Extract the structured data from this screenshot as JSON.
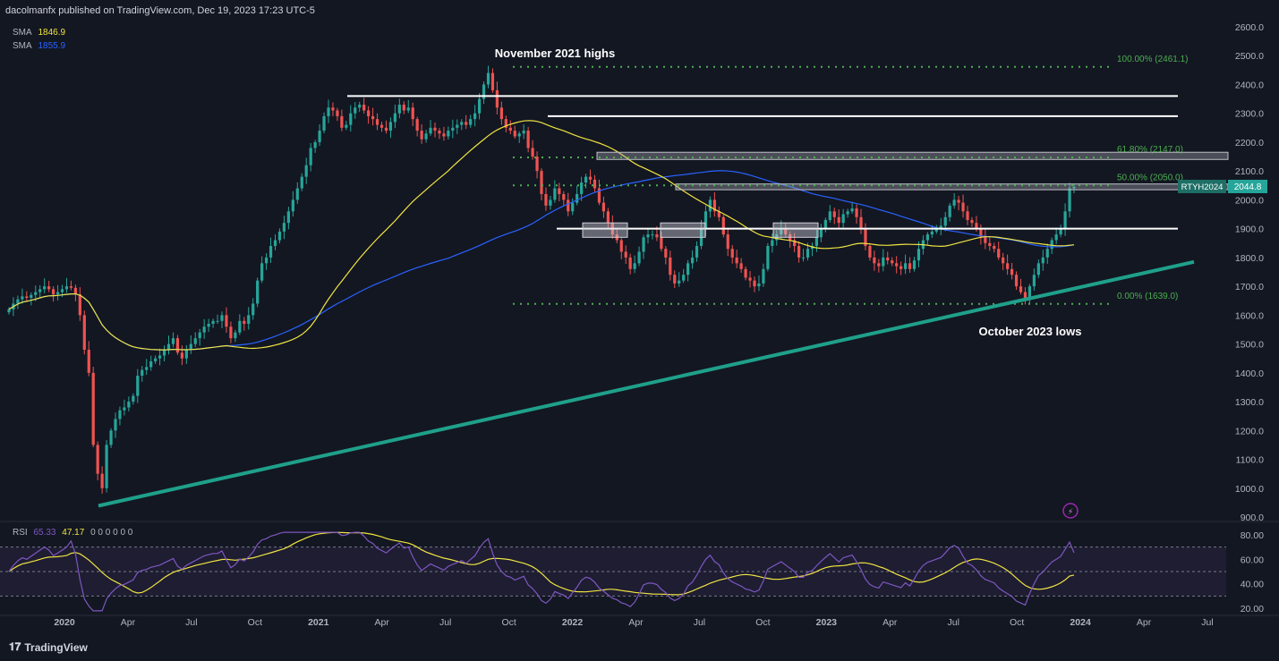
{
  "header": {
    "published": "dacolmanfx published on TradingView.com, Dec 19, 2023 17:23 UTC-5"
  },
  "footer": {
    "brand": "TradingView"
  },
  "indicators": {
    "sma1_label": "SMA",
    "sma1_value": "1846.9",
    "sma1_color": "#f0e442",
    "sma2_label": "SMA",
    "sma2_value": "1855.9",
    "sma2_color": "#2962ff",
    "rsi_label": "RSI",
    "rsi_value": "65.33",
    "rsi_ma_value": "47.17",
    "rsi_extra": "0 0 0 0 0 0"
  },
  "colors": {
    "background": "#131722",
    "up": "#26a69a",
    "down": "#ef5350",
    "trendline": "#1fa08a",
    "fib": "#4caf50",
    "rsi_line": "#7e57c2",
    "rsi_ma": "#f0e442"
  },
  "chart_data": {
    "type": "candlestick",
    "symbol": "RTYH2024",
    "last_price": "2044.8",
    "price_axis": {
      "min": 900,
      "max": 2600,
      "ticks": [
        "2600.0",
        "2500.0",
        "2400.0",
        "2300.0",
        "2200.0",
        "2100.0",
        "2000.0",
        "1900.0",
        "1800.0",
        "1700.0",
        "1600.0",
        "1500.0",
        "1400.0",
        "1300.0",
        "1200.0",
        "1100.0",
        "1000.0",
        "900.0"
      ]
    },
    "rsi_axis": {
      "min": 15,
      "max": 85,
      "ticks": [
        "80.00",
        "60.00",
        "40.00",
        "20.00"
      ],
      "upper_band": 70,
      "middle_band": 50,
      "lower_band": 30
    },
    "time_axis": [
      "2020",
      "Apr",
      "Jul",
      "Oct",
      "2021",
      "Apr",
      "Jul",
      "Oct",
      "2022",
      "Apr",
      "Jul",
      "Oct",
      "2023",
      "Apr",
      "Jul",
      "Oct",
      "2024",
      "Apr",
      "Jul"
    ],
    "annotations": [
      {
        "text": "November 2021 highs",
        "price": 2461
      },
      {
        "text": "October 2023 lows",
        "price": 1639
      }
    ],
    "fib_levels": [
      {
        "label": "100.00% (2461.1)",
        "price": 2461.1
      },
      {
        "label": "61.80% (2147.0)",
        "price": 2147.0
      },
      {
        "label": "50.00% (2050.0)",
        "price": 2050.0
      },
      {
        "label": "0.00% (1639.0)",
        "price": 1639.0
      }
    ],
    "horizontal_levels": [
      2360,
      2290,
      1900
    ],
    "zones": [
      {
        "from": 2140,
        "to": 2165
      },
      {
        "from": 2035,
        "to": 2055
      }
    ],
    "trendline": {
      "start_price": 945,
      "end_price": 1760
    },
    "weekly_closes": [
      1620,
      1640,
      1655,
      1665,
      1660,
      1670,
      1680,
      1690,
      1700,
      1690,
      1672,
      1680,
      1690,
      1700,
      1695,
      1672,
      1600,
      1480,
      1400,
      1150,
      1050,
      1000,
      1150,
      1200,
      1240,
      1270,
      1280,
      1300,
      1320,
      1390,
      1410,
      1420,
      1440,
      1450,
      1460,
      1480,
      1500,
      1520,
      1470,
      1450,
      1480,
      1500,
      1520,
      1540,
      1560,
      1570,
      1580,
      1580,
      1600,
      1560,
      1520,
      1540,
      1580,
      1570,
      1600,
      1640,
      1720,
      1780,
      1800,
      1840,
      1860,
      1890,
      1920,
      1960,
      2000,
      2040,
      2080,
      2120,
      2180,
      2200,
      2240,
      2290,
      2320,
      2310,
      2290,
      2250,
      2260,
      2300,
      2320,
      2330,
      2310,
      2290,
      2280,
      2260,
      2250,
      2240,
      2270,
      2300,
      2330,
      2310,
      2320,
      2280,
      2240,
      2210,
      2230,
      2250,
      2240,
      2230,
      2220,
      2240,
      2250,
      2260,
      2270,
      2260,
      2280,
      2300,
      2350,
      2400,
      2440,
      2380,
      2320,
      2280,
      2250,
      2240,
      2220,
      2230,
      2240,
      2180,
      2150,
      2100,
      2020,
      1980,
      2000,
      2040,
      2020,
      2000,
      1960,
      1990,
      2020,
      2060,
      2080,
      2070,
      2040,
      1990,
      1960,
      1920,
      1880,
      1860,
      1820,
      1800,
      1760,
      1780,
      1820,
      1870,
      1880,
      1880,
      1870,
      1830,
      1800,
      1740,
      1710,
      1720,
      1740,
      1780,
      1800,
      1840,
      1900,
      1960,
      2000,
      1960,
      1940,
      1880,
      1830,
      1800,
      1780,
      1760,
      1730,
      1720,
      1700,
      1710,
      1760,
      1840,
      1860,
      1880,
      1900,
      1880,
      1860,
      1840,
      1800,
      1800,
      1830,
      1840,
      1870,
      1900,
      1930,
      1960,
      1940,
      1920,
      1950,
      1960,
      1970,
      1940,
      1900,
      1840,
      1800,
      1780,
      1770,
      1800,
      1790,
      1780,
      1770,
      1760,
      1780,
      1760,
      1790,
      1830,
      1860,
      1880,
      1890,
      1900,
      1910,
      1940,
      1980,
      2000,
      1990,
      1960,
      1930,
      1920,
      1900,
      1870,
      1850,
      1840,
      1830,
      1800,
      1780,
      1760,
      1740,
      1700,
      1680,
      1660,
      1700,
      1740,
      1780,
      1800,
      1830,
      1860,
      1880,
      1900,
      1960,
      2040,
      2044.8
    ],
    "sma_short_end": 1846.9,
    "sma_long_end": 1855.9,
    "rsi_end": 65.33,
    "rsi_ma_end": 47.17
  }
}
